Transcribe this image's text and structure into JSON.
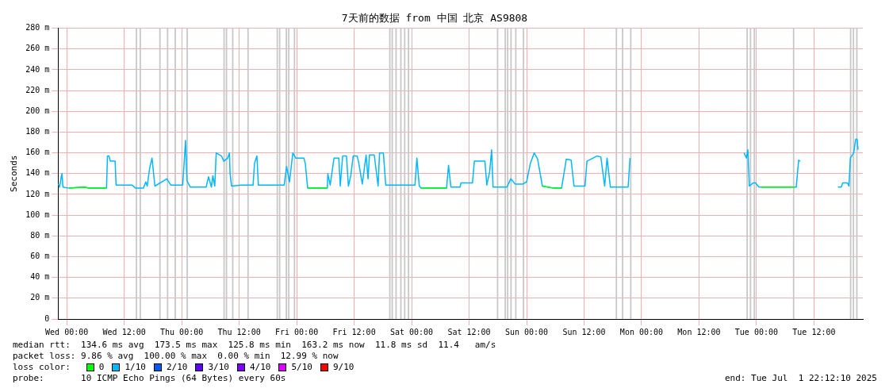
{
  "chart_data": {
    "type": "line",
    "title": "7天前的数据 from 中国 北京 AS9808",
    "ylabel": "Seconds",
    "legend_title": "loss color:",
    "legend": "bottom",
    "grid": true,
    "marker": "none",
    "line_style": "solid",
    "xlim": [
      "2025-06-24T22:12",
      "2025-07-01T22:12"
    ],
    "xticks": [
      {
        "value": "2025-06-25T00:00",
        "label": "Wed 00:00"
      },
      {
        "value": "2025-06-25T12:00",
        "label": "Wed 12:00"
      },
      {
        "value": "2025-06-26T00:00",
        "label": "Thu 00:00"
      },
      {
        "value": "2025-06-26T12:00",
        "label": "Thu 12:00"
      },
      {
        "value": "2025-06-27T00:00",
        "label": "Fri 00:00"
      },
      {
        "value": "2025-06-27T12:00",
        "label": "Fri 12:00"
      },
      {
        "value": "2025-06-28T00:00",
        "label": "Sat 00:00"
      },
      {
        "value": "2025-06-28T12:00",
        "label": "Sat 12:00"
      },
      {
        "value": "2025-06-29T00:00",
        "label": "Sun 00:00"
      },
      {
        "value": "2025-06-29T12:00",
        "label": "Sun 12:00"
      },
      {
        "value": "2025-06-30T00:00",
        "label": "Mon 00:00"
      },
      {
        "value": "2025-06-30T12:00",
        "label": "Mon 12:00"
      },
      {
        "value": "2025-07-01T00:00",
        "label": "Tue 00:00"
      },
      {
        "value": "2025-07-01T12:00",
        "label": "Tue 12:00"
      }
    ],
    "ylim": [
      0,
      280
    ],
    "yticks": [
      0,
      {
        "value": 20,
        "label": "20 m"
      },
      {
        "value": 40,
        "label": "40 m"
      },
      {
        "value": 60,
        "label": "60 m"
      },
      {
        "value": 80,
        "label": "80 m"
      },
      {
        "value": 100,
        "label": "100 m"
      },
      {
        "value": 120,
        "label": "120 m"
      },
      {
        "value": 140,
        "label": "140 m"
      },
      {
        "value": 160,
        "label": "160 m"
      },
      {
        "value": 180,
        "label": "180 m"
      },
      {
        "value": 200,
        "label": "200 m"
      },
      {
        "value": 220,
        "label": "220 m"
      },
      {
        "value": 240,
        "label": "240 m"
      },
      {
        "value": 260,
        "label": "260 m"
      },
      {
        "value": 280,
        "label": "280 m"
      }
    ],
    "series": [
      {
        "name": "0",
        "color": "#00ff00",
        "x": [
          "2025-06-25T00:30",
          "2025-06-25T03:48",
          "2025-06-25T04:36",
          "2025-06-25T08:18",
          "2025-06-25T08:24",
          "2025-06-27T02:18",
          "2025-06-27T06:24",
          "2025-06-27T06:27",
          "2025-06-28T02:00",
          "2025-06-28T07:18",
          "2025-06-28T07:24",
          "2025-06-29T03:18",
          "2025-06-29T05:42",
          "2025-06-29T07:18",
          "2025-06-29T07:24",
          "2025-07-01T01:00",
          "2025-07-01T04:00",
          "2025-07-01T08:00"
        ],
        "values": [
          126,
          127,
          126,
          126,
          null,
          126,
          126,
          null,
          126,
          126,
          null,
          128,
          126,
          126,
          null,
          127,
          127,
          127
        ]
      },
      {
        "name": "1/10",
        "color": "#00b8ff",
        "x": [
          "2025-06-24T22:12",
          "2025-06-24T22:30",
          "2025-06-24T22:54",
          "2025-06-24T23:00",
          "2025-06-24T23:12",
          "2025-06-25T00:30",
          "2025-06-25T03:48",
          "2025-06-25T04:36",
          "2025-06-25T08:18",
          "2025-06-25T08:30",
          "2025-06-25T08:48",
          "2025-06-25T09:06",
          "2025-06-25T10:06",
          "2025-06-25T10:18",
          "2025-06-25T13:36",
          "2025-06-25T14:24",
          "2025-06-25T16:00",
          "2025-06-25T16:30",
          "2025-06-25T16:48",
          "2025-06-25T17:18",
          "2025-06-25T17:48",
          "2025-06-25T18:24",
          "2025-06-25T20:54",
          "2025-06-25T21:42",
          "2025-06-26T00:12",
          "2025-06-26T00:30",
          "2025-06-26T00:48",
          "2025-06-26T01:06",
          "2025-06-26T01:48",
          "2025-06-26T05:06",
          "2025-06-26T05:36",
          "2025-06-26T06:12",
          "2025-06-26T06:30",
          "2025-06-26T06:54",
          "2025-06-26T07:12",
          "2025-06-26T08:18",
          "2025-06-26T08:48",
          "2025-06-26T09:36",
          "2025-06-26T09:58",
          "2025-06-26T10:06",
          "2025-06-26T10:24",
          "2025-06-26T12:24",
          "2025-06-26T14:54",
          "2025-06-26T15:12",
          "2025-06-26T15:42",
          "2025-06-26T16:00",
          "2025-06-26T21:24",
          "2025-06-26T21:54",
          "2025-06-26T22:30",
          "2025-06-26T23:12",
          "2025-06-26T23:48",
          "2025-06-27T01:30",
          "2025-06-27T01:48",
          "2025-06-27T02:18",
          "2025-06-27T06:24",
          "2025-06-27T06:30",
          "2025-06-27T07:00",
          "2025-06-27T07:48",
          "2025-06-27T08:48",
          "2025-06-27T09:06",
          "2025-06-27T09:36",
          "2025-06-27T10:24",
          "2025-06-27T10:48",
          "2025-06-27T11:18",
          "2025-06-27T11:48",
          "2025-06-27T12:36",
          "2025-06-27T12:54",
          "2025-06-27T13:42",
          "2025-06-27T14:30",
          "2025-06-27T14:54",
          "2025-06-27T15:12",
          "2025-06-27T16:12",
          "2025-06-27T17:00",
          "2025-06-27T17:18",
          "2025-06-27T18:06",
          "2025-06-27T18:36",
          "2025-06-28T00:42",
          "2025-06-28T01:06",
          "2025-06-28T01:36",
          "2025-06-28T02:00",
          "2025-06-28T07:18",
          "2025-06-28T07:42",
          "2025-06-28T08:12",
          "2025-06-28T10:06",
          "2025-06-28T10:18",
          "2025-06-28T12:42",
          "2025-06-28T13:06",
          "2025-06-28T15:18",
          "2025-06-28T15:42",
          "2025-06-28T16:18",
          "2025-06-28T16:42",
          "2025-06-28T17:00",
          "2025-06-28T19:54",
          "2025-06-28T20:42",
          "2025-06-28T21:36",
          "2025-06-28T23:12",
          "2025-06-29T00:00",
          "2025-06-29T00:48",
          "2025-06-29T01:36",
          "2025-06-29T02:18",
          "2025-06-29T03:18",
          "2025-06-29T05:42",
          "2025-06-29T07:18",
          "2025-06-29T08:18",
          "2025-06-29T09:18",
          "2025-06-29T09:54",
          "2025-06-29T12:12",
          "2025-06-29T12:36",
          "2025-06-29T14:42",
          "2025-06-29T15:30",
          "2025-06-29T16:18",
          "2025-06-29T16:48",
          "2025-06-29T17:30",
          "2025-06-29T21:12",
          "2025-06-29T21:36",
          "2025-06-29T22:00",
          "2025-06-30T21:24",
          "2025-06-30T21:54",
          "2025-06-30T22:12",
          "2025-06-30T22:30",
          "2025-06-30T23:18",
          "2025-06-30T23:48",
          "2025-07-01T00:30",
          "2025-07-01T08:18",
          "2025-07-01T08:48",
          "2025-07-01T09:06",
          "2025-07-01T09:30",
          "2025-07-01T17:00",
          "2025-07-01T17:42",
          "2025-07-01T18:00",
          "2025-07-01T19:00",
          "2025-07-01T19:18",
          "2025-07-01T19:36",
          "2025-07-01T20:18",
          "2025-07-01T20:42",
          "2025-07-01T21:00",
          "2025-07-01T21:12"
        ],
        "values": [
          130,
          127,
          138,
          140,
          127,
          126,
          127,
          126,
          126,
          157,
          157,
          152,
          152,
          129,
          129,
          126,
          126,
          132,
          128,
          145,
          155,
          128,
          135,
          129,
          129,
          150,
          172,
          133,
          127,
          127,
          137,
          127,
          138,
          128,
          160,
          157,
          152,
          155,
          160,
          140,
          128,
          129,
          129,
          150,
          157,
          129,
          129,
          147,
          132,
          160,
          155,
          155,
          150,
          126,
          126,
          140,
          129,
          155,
          155,
          128,
          157,
          157,
          128,
          138,
          157,
          157,
          152,
          130,
          158,
          135,
          158,
          158,
          128,
          160,
          160,
          129,
          129,
          155,
          128,
          126,
          126,
          148,
          127,
          127,
          131,
          131,
          152,
          152,
          129,
          142,
          163,
          127,
          127,
          135,
          130,
          130,
          132,
          150,
          160,
          154,
          128,
          126,
          126,
          154,
          153,
          128,
          128,
          152,
          157,
          156,
          128,
          155,
          127,
          127,
          155,
          null,
          160,
          155,
          163,
          128,
          131,
          131,
          127,
          127,
          153,
          152,
          null,
          127,
          127,
          131,
          131,
          128,
          155,
          160,
          173,
          173,
          163
        ]
      },
      {
        "name": "2/10",
        "color": "#0059ff"
      },
      {
        "name": "3/10",
        "color": "#5e00ff"
      },
      {
        "name": "4/10",
        "color": "#7e00ff"
      },
      {
        "name": "5/10",
        "color": "#dd00ff"
      },
      {
        "name": "9/10",
        "color": "#ff0000"
      }
    ],
    "bands": [
      {
        "axis": "x",
        "from": "2025-06-25T14:24",
        "to": "2025-06-25T14:42",
        "color": "#c8c8c8"
      },
      {
        "axis": "x",
        "from": "2025-06-25T15:12",
        "to": "2025-06-25T15:30",
        "color": "#c8c8c8"
      },
      {
        "axis": "x",
        "from": "2025-06-25T19:18",
        "to": "2025-06-25T19:36",
        "color": "#c8c8c8"
      },
      {
        "axis": "x",
        "from": "2025-06-25T20:54",
        "to": "2025-06-25T21:12",
        "color": "#c8c8c8"
      },
      {
        "axis": "x",
        "from": "2025-06-25T22:30",
        "to": "2025-06-25T22:48",
        "color": "#c8c8c8"
      },
      {
        "axis": "x",
        "from": "2025-06-26T01:00",
        "to": "2025-06-26T01:18",
        "color": "#c8c8c8"
      },
      {
        "axis": "x",
        "from": "2025-06-26T08:42",
        "to": "2025-06-26T09:00",
        "color": "#c8c8c8"
      },
      {
        "axis": "x",
        "from": "2025-06-26T09:12",
        "to": "2025-06-26T09:30",
        "color": "#c8c8c8"
      },
      {
        "axis": "x",
        "from": "2025-06-26T10:30",
        "to": "2025-06-26T10:48",
        "color": "#c8c8c8"
      },
      {
        "axis": "x",
        "from": "2025-06-26T13:42",
        "to": "2025-06-26T14:00",
        "color": "#c8c8c8"
      },
      {
        "axis": "x",
        "from": "2025-06-26T19:48",
        "to": "2025-06-26T20:06",
        "color": "#c8c8c8"
      },
      {
        "axis": "x",
        "from": "2025-06-26T20:18",
        "to": "2025-06-26T20:36",
        "color": "#c8c8c8"
      },
      {
        "axis": "x",
        "from": "2025-06-26T21:42",
        "to": "2025-06-26T22:00",
        "color": "#c8c8c8"
      },
      {
        "axis": "x",
        "from": "2025-06-26T22:12",
        "to": "2025-06-26T22:30",
        "color": "#c8c8c8"
      },
      {
        "axis": "x",
        "from": "2025-06-26T23:24",
        "to": "2025-06-26T23:42",
        "color": "#c8c8c8"
      },
      {
        "axis": "x",
        "from": "2025-06-27T19:18",
        "to": "2025-06-27T19:36",
        "color": "#c8c8c8"
      },
      {
        "axis": "x",
        "from": "2025-06-27T19:48",
        "to": "2025-06-27T20:06",
        "color": "#c8c8c8"
      },
      {
        "axis": "x",
        "from": "2025-06-27T20:36",
        "to": "2025-06-27T20:54",
        "color": "#c8c8c8"
      },
      {
        "axis": "x",
        "from": "2025-06-27T21:36",
        "to": "2025-06-27T21:54",
        "color": "#c8c8c8"
      },
      {
        "axis": "x",
        "from": "2025-06-27T22:24",
        "to": "2025-06-27T22:42",
        "color": "#c8c8c8"
      },
      {
        "axis": "x",
        "from": "2025-06-27T23:12",
        "to": "2025-06-27T23:30",
        "color": "#c8c8c8"
      },
      {
        "axis": "x",
        "from": "2025-06-28T17:48",
        "to": "2025-06-28T18:06",
        "color": "#c8c8c8"
      },
      {
        "axis": "x",
        "from": "2025-06-28T19:24",
        "to": "2025-06-28T19:42",
        "color": "#c8c8c8"
      },
      {
        "axis": "x",
        "from": "2025-06-28T19:54",
        "to": "2025-06-28T20:12",
        "color": "#c8c8c8"
      },
      {
        "axis": "x",
        "from": "2025-06-28T20:36",
        "to": "2025-06-28T20:54",
        "color": "#c8c8c8"
      },
      {
        "axis": "x",
        "from": "2025-06-28T21:36",
        "to": "2025-06-28T21:54",
        "color": "#c8c8c8"
      },
      {
        "axis": "x",
        "from": "2025-06-28T23:12",
        "to": "2025-06-28T23:30",
        "color": "#c8c8c8"
      },
      {
        "axis": "x",
        "from": "2025-06-29T18:36",
        "to": "2025-06-29T18:54",
        "color": "#c8c8c8"
      },
      {
        "axis": "x",
        "from": "2025-06-29T19:54",
        "to": "2025-06-29T20:12",
        "color": "#c8c8c8"
      },
      {
        "axis": "x",
        "from": "2025-06-29T21:36",
        "to": "2025-06-29T21:54",
        "color": "#c8c8c8"
      },
      {
        "axis": "x",
        "from": "2025-06-30T21:54",
        "to": "2025-06-30T22:12",
        "color": "#c8c8c8"
      },
      {
        "axis": "x",
        "from": "2025-06-30T22:36",
        "to": "2025-06-30T22:54",
        "color": "#c8c8c8"
      },
      {
        "axis": "x",
        "from": "2025-06-30T23:24",
        "to": "2025-06-30T23:42",
        "color": "#c8c8c8"
      },
      {
        "axis": "x",
        "from": "2025-07-01T07:36",
        "to": "2025-07-01T07:54",
        "color": "#c8c8c8"
      },
      {
        "axis": "x",
        "from": "2025-07-01T19:30",
        "to": "2025-07-01T19:48",
        "color": "#c8c8c8"
      },
      {
        "axis": "x",
        "from": "2025-07-01T20:06",
        "to": "2025-07-01T20:24",
        "color": "#c8c8c8"
      },
      {
        "axis": "x",
        "from": "2025-07-01T20:48",
        "to": "2025-07-01T21:06",
        "color": "#c8c8c8"
      }
    ],
    "annotations": [
      "median rtt:  134.6 ms avg  173.5 ms max  125.8 ms min  163.2 ms now  11.8 ms sd  11.4   am/s",
      "packet loss: 9.86 % avg  100.00 % max  0.00 % min  12.99 % now",
      "probe:       10 ICMP Echo Pings (64 Bytes) every 60s",
      "end: Tue Jul  1 22:12:10 2025"
    ]
  }
}
